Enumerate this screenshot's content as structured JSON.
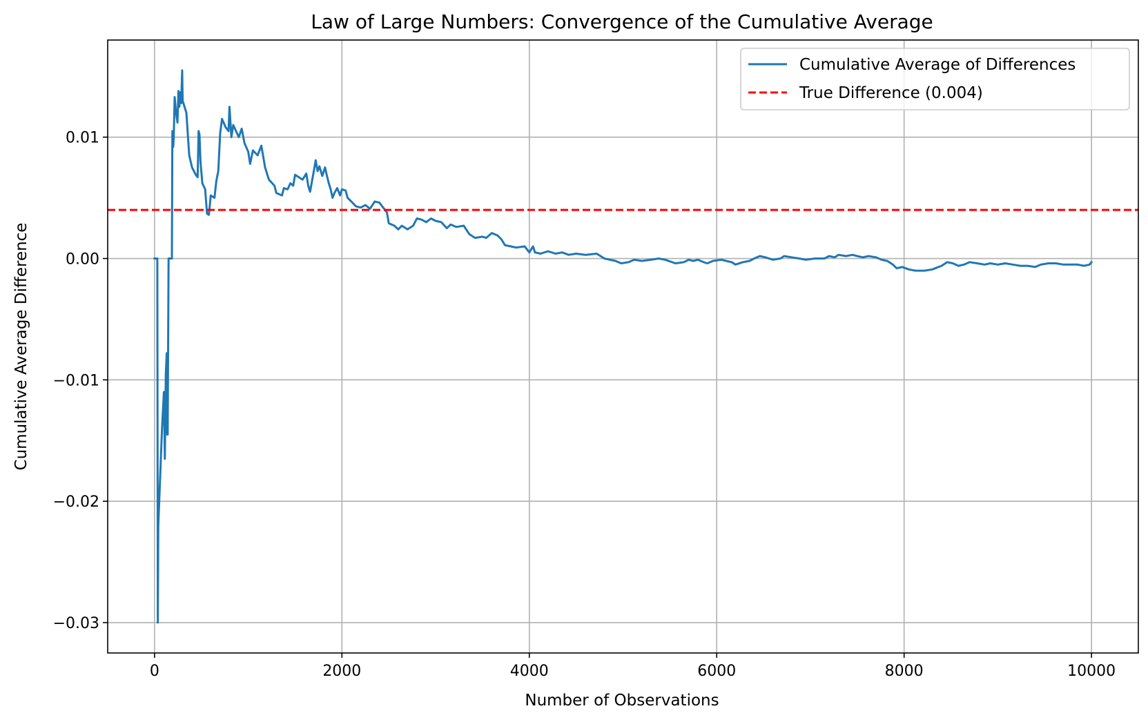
{
  "chart_data": {
    "type": "line",
    "title": "Law of Large Numbers: Convergence of the Cumulative Average",
    "xlabel": "Number of Observations",
    "ylabel": "Cumulative Average Difference",
    "xlim": [
      -500,
      10500
    ],
    "ylim": [
      -0.0325,
      0.018
    ],
    "grid": true,
    "legend_position": "top-right",
    "x_ticks": [
      0,
      2000,
      4000,
      6000,
      8000,
      10000
    ],
    "x_tick_labels": [
      "0",
      "2000",
      "4000",
      "6000",
      "8000",
      "10000"
    ],
    "y_ticks": [
      -0.03,
      -0.02,
      -0.01,
      0.0,
      0.01
    ],
    "y_tick_labels": [
      "−0.03",
      "−0.02",
      "−0.01",
      "0.00",
      "0.01"
    ],
    "series": [
      {
        "name": "Cumulative Average of Differences",
        "color": "#1f77b4",
        "style": "solid",
        "points": [
          [
            0,
            0.0
          ],
          [
            30,
            0.0
          ],
          [
            35,
            -0.03
          ],
          [
            40,
            -0.022
          ],
          [
            60,
            -0.018
          ],
          [
            80,
            -0.014
          ],
          [
            100,
            -0.011
          ],
          [
            110,
            -0.0165
          ],
          [
            120,
            -0.0095
          ],
          [
            130,
            -0.0078
          ],
          [
            135,
            -0.0145
          ],
          [
            140,
            -0.0145
          ],
          [
            150,
            0.0
          ],
          [
            185,
            0.0
          ],
          [
            190,
            0.0105
          ],
          [
            200,
            0.0092
          ],
          [
            205,
            0.01
          ],
          [
            215,
            0.0133
          ],
          [
            230,
            0.012
          ],
          [
            245,
            0.0112
          ],
          [
            255,
            0.0138
          ],
          [
            265,
            0.0125
          ],
          [
            275,
            0.0137
          ],
          [
            285,
            0.0128
          ],
          [
            295,
            0.0155
          ],
          [
            300,
            0.013
          ],
          [
            340,
            0.012
          ],
          [
            370,
            0.0085
          ],
          [
            400,
            0.0075
          ],
          [
            440,
            0.0069
          ],
          [
            460,
            0.0067
          ],
          [
            470,
            0.0105
          ],
          [
            480,
            0.0102
          ],
          [
            490,
            0.008
          ],
          [
            510,
            0.0062
          ],
          [
            540,
            0.0057
          ],
          [
            560,
            0.0037
          ],
          [
            580,
            0.0036
          ],
          [
            600,
            0.0052
          ],
          [
            640,
            0.005
          ],
          [
            660,
            0.0064
          ],
          [
            680,
            0.0072
          ],
          [
            700,
            0.0103
          ],
          [
            720,
            0.0115
          ],
          [
            760,
            0.0108
          ],
          [
            790,
            0.0105
          ],
          [
            800,
            0.0125
          ],
          [
            820,
            0.01
          ],
          [
            840,
            0.011
          ],
          [
            870,
            0.0105
          ],
          [
            900,
            0.01
          ],
          [
            930,
            0.0107
          ],
          [
            960,
            0.0095
          ],
          [
            1000,
            0.0088
          ],
          [
            1020,
            0.0078
          ],
          [
            1050,
            0.0089
          ],
          [
            1100,
            0.0085
          ],
          [
            1140,
            0.0093
          ],
          [
            1180,
            0.0075
          ],
          [
            1220,
            0.0065
          ],
          [
            1280,
            0.006
          ],
          [
            1300,
            0.0054
          ],
          [
            1360,
            0.0052
          ],
          [
            1380,
            0.0058
          ],
          [
            1420,
            0.0057
          ],
          [
            1450,
            0.0062
          ],
          [
            1480,
            0.006
          ],
          [
            1500,
            0.0069
          ],
          [
            1540,
            0.0067
          ],
          [
            1580,
            0.0065
          ],
          [
            1620,
            0.007
          ],
          [
            1640,
            0.006
          ],
          [
            1660,
            0.0055
          ],
          [
            1700,
            0.0072
          ],
          [
            1720,
            0.0081
          ],
          [
            1740,
            0.0072
          ],
          [
            1760,
            0.0076
          ],
          [
            1790,
            0.0068
          ],
          [
            1820,
            0.0075
          ],
          [
            1840,
            0.0068
          ],
          [
            1860,
            0.0062
          ],
          [
            1880,
            0.0057
          ],
          [
            1900,
            0.005
          ],
          [
            1920,
            0.0054
          ],
          [
            1950,
            0.0058
          ],
          [
            1980,
            0.0052
          ],
          [
            2000,
            0.0057
          ],
          [
            2040,
            0.0056
          ],
          [
            2060,
            0.005
          ],
          [
            2100,
            0.0047
          ],
          [
            2150,
            0.0043
          ],
          [
            2200,
            0.0042
          ],
          [
            2250,
            0.0044
          ],
          [
            2300,
            0.0041
          ],
          [
            2350,
            0.0047
          ],
          [
            2400,
            0.0046
          ],
          [
            2440,
            0.0042
          ],
          [
            2480,
            0.0038
          ],
          [
            2500,
            0.0029
          ],
          [
            2560,
            0.0027
          ],
          [
            2600,
            0.0024
          ],
          [
            2640,
            0.0027
          ],
          [
            2700,
            0.0024
          ],
          [
            2760,
            0.0027
          ],
          [
            2800,
            0.0033
          ],
          [
            2850,
            0.0032
          ],
          [
            2900,
            0.003
          ],
          [
            2950,
            0.0033
          ],
          [
            3000,
            0.0031
          ],
          [
            3060,
            0.003
          ],
          [
            3120,
            0.0025
          ],
          [
            3160,
            0.0028
          ],
          [
            3220,
            0.0026
          ],
          [
            3300,
            0.0027
          ],
          [
            3360,
            0.002
          ],
          [
            3420,
            0.0017
          ],
          [
            3500,
            0.0018
          ],
          [
            3540,
            0.0017
          ],
          [
            3600,
            0.0021
          ],
          [
            3660,
            0.0019
          ],
          [
            3700,
            0.0016
          ],
          [
            3740,
            0.0011
          ],
          [
            3800,
            0.001
          ],
          [
            3860,
            0.0009
          ],
          [
            3950,
            0.001
          ],
          [
            4000,
            0.0005
          ],
          [
            4040,
            0.001
          ],
          [
            4060,
            0.0005
          ],
          [
            4120,
            0.0004
          ],
          [
            4200,
            0.0006
          ],
          [
            4280,
            0.0004
          ],
          [
            4350,
            0.0005
          ],
          [
            4420,
            0.0003
          ],
          [
            4500,
            0.0004
          ],
          [
            4600,
            0.0003
          ],
          [
            4720,
            0.0004
          ],
          [
            4800,
            0.0
          ],
          [
            4860,
            -0.0001
          ],
          [
            4920,
            -0.0002
          ],
          [
            4980,
            -0.0004
          ],
          [
            5060,
            -0.0003
          ],
          [
            5120,
            -0.0001
          ],
          [
            5200,
            -0.0002
          ],
          [
            5300,
            -0.0001
          ],
          [
            5380,
            0.0
          ],
          [
            5450,
            -0.0001
          ],
          [
            5560,
            -0.0004
          ],
          [
            5650,
            -0.0003
          ],
          [
            5700,
            -0.0001
          ],
          [
            5750,
            -0.0002
          ],
          [
            5800,
            -0.0001
          ],
          [
            5860,
            -0.0003
          ],
          [
            5900,
            -0.0004
          ],
          [
            5960,
            -0.0002
          ],
          [
            6050,
            -0.0001
          ],
          [
            6100,
            -0.0002
          ],
          [
            6160,
            -0.0003
          ],
          [
            6200,
            -0.0005
          ],
          [
            6280,
            -0.0003
          ],
          [
            6350,
            -0.0002
          ],
          [
            6400,
            0.0
          ],
          [
            6460,
            0.0002
          ],
          [
            6520,
            0.0001
          ],
          [
            6600,
            -0.0001
          ],
          [
            6680,
            0.0
          ],
          [
            6720,
            0.0002
          ],
          [
            6800,
            0.0001
          ],
          [
            6880,
            0.0
          ],
          [
            6950,
            -0.0001
          ],
          [
            7050,
            0.0
          ],
          [
            7150,
            0.0
          ],
          [
            7200,
            0.0002
          ],
          [
            7260,
            0.0001
          ],
          [
            7300,
            0.0003
          ],
          [
            7380,
            0.0002
          ],
          [
            7450,
            0.0003
          ],
          [
            7500,
            0.0002
          ],
          [
            7560,
            0.0001
          ],
          [
            7620,
            0.0002
          ],
          [
            7700,
            0.0001
          ],
          [
            7760,
            -0.0001
          ],
          [
            7820,
            -0.0002
          ],
          [
            7880,
            -0.0005
          ],
          [
            7920,
            -0.0008
          ],
          [
            7980,
            -0.0007
          ],
          [
            8050,
            -0.0009
          ],
          [
            8120,
            -0.001
          ],
          [
            8220,
            -0.001
          ],
          [
            8300,
            -0.0009
          ],
          [
            8400,
            -0.0006
          ],
          [
            8460,
            -0.0003
          ],
          [
            8520,
            -0.0004
          ],
          [
            8580,
            -0.0006
          ],
          [
            8640,
            -0.0005
          ],
          [
            8700,
            -0.0003
          ],
          [
            8780,
            -0.0004
          ],
          [
            8860,
            -0.0005
          ],
          [
            8920,
            -0.0004
          ],
          [
            9000,
            -0.0005
          ],
          [
            9080,
            -0.0004
          ],
          [
            9160,
            -0.0005
          ],
          [
            9240,
            -0.0006
          ],
          [
            9320,
            -0.0006
          ],
          [
            9400,
            -0.0007
          ],
          [
            9460,
            -0.0005
          ],
          [
            9540,
            -0.0004
          ],
          [
            9620,
            -0.0004
          ],
          [
            9700,
            -0.0005
          ],
          [
            9780,
            -0.0005
          ],
          [
            9850,
            -0.0005
          ],
          [
            9920,
            -0.0006
          ],
          [
            9980,
            -0.0005
          ],
          [
            10000,
            -0.0003
          ]
        ]
      },
      {
        "name": "True Difference (0.004)",
        "color": "#ff0000",
        "style": "dashed",
        "constant_y": 0.004
      }
    ]
  }
}
